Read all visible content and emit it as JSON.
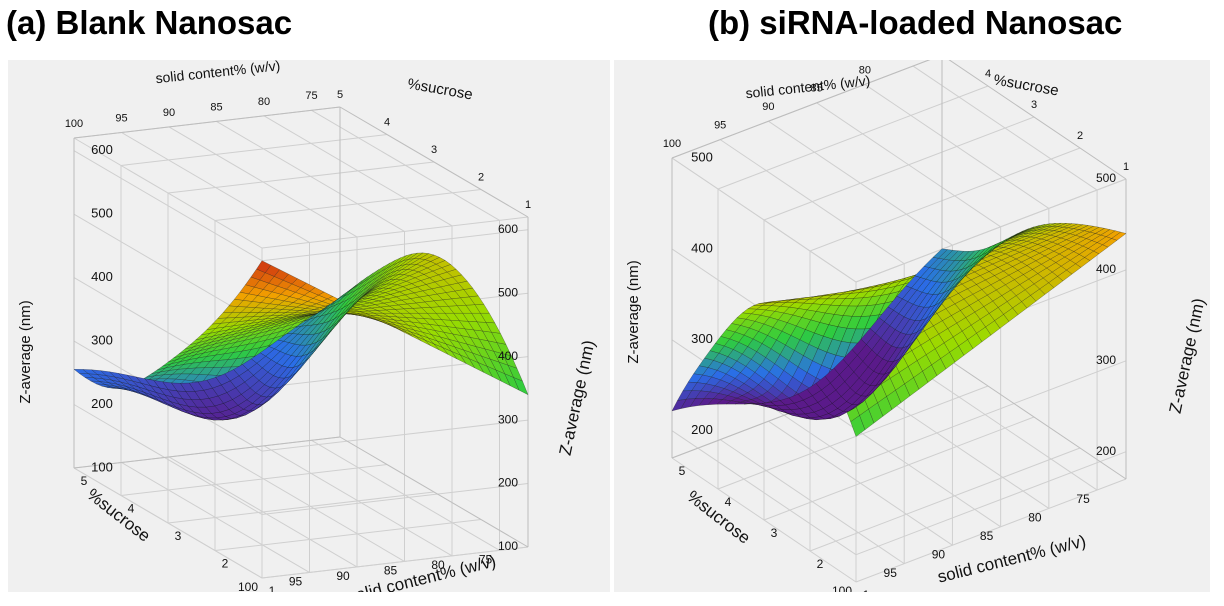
{
  "panels": [
    {
      "title": "(a) Blank Nanosac"
    },
    {
      "title": "(b) siRNA-loaded Nanosac"
    }
  ],
  "chart_data": [
    {
      "type": "surface",
      "title": "(a) Blank Nanosac",
      "x_label": "solid content% (w/v)",
      "y_label": "%sucrose",
      "z_label": "Z-average (nm)",
      "x_ticks": [
        1,
        2,
        3,
        4,
        5
      ],
      "y_ticks": [
        100,
        95,
        90,
        85,
        80,
        75
      ],
      "z_ticks": [
        100,
        200,
        300,
        400,
        500,
        600
      ],
      "x_range": [
        1,
        5
      ],
      "y_range": [
        72,
        100
      ],
      "z_range": [
        100,
        620
      ],
      "colormap": [
        "#5a1a8a",
        "#2a6ee8",
        "#2ecc40",
        "#9adb00",
        "#f2a000",
        "#c81e14"
      ],
      "corner_values": {
        "x1_y100": 600,
        "x1_y72": 340,
        "x3_y100": 360,
        "x3_y72": 480,
        "x5_y100": 270,
        "x5_y72": 330,
        "x4_y90_min": 185
      },
      "grid": true
    },
    {
      "type": "surface",
      "title": "(b) siRNA-loaded Nanosac",
      "x_label": "solid content% (w/v)",
      "y_label": "%sucrose",
      "z_label": "Z-average (nm)",
      "x_ticks": [
        1,
        2,
        3,
        4,
        5
      ],
      "y_ticks": [
        100,
        95,
        90,
        85,
        80,
        75
      ],
      "z_ticks": [
        200,
        300,
        400,
        500
      ],
      "x_range": [
        1,
        5
      ],
      "y_range": [
        72,
        100
      ],
      "z_range": [
        170,
        500
      ],
      "colormap": [
        "#5a1a8a",
        "#2a6ee8",
        "#2ecc40",
        "#9adb00",
        "#f2a000",
        "#c81e14"
      ],
      "corner_values": {
        "x1_y100": 330,
        "x1_y72": 440,
        "x3_y100": 415,
        "x3_y72": 385,
        "x5_y100": 235,
        "x5_y72": 300,
        "x4_y90_min": 205
      },
      "grid": true
    }
  ]
}
